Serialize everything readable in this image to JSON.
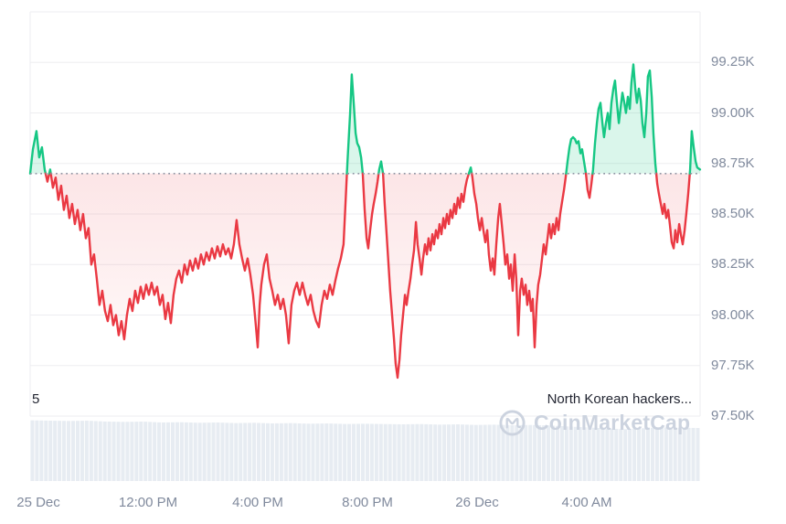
{
  "annotations": {
    "news_count": "5",
    "news_headline": "North Korean hackers..."
  },
  "watermark": {
    "brand": "CoinMarketCap"
  },
  "colors": {
    "up": "#16c784",
    "down": "#ea3943",
    "up_fill": "rgba(22,199,132,0.16)",
    "down_fill_top": "rgba(234,57,67,0.13)",
    "down_fill_bottom": "rgba(234,57,67,0.0)",
    "grid": "#ededf0",
    "baseline_dots": "#8f95a3",
    "axis_text": "#808a9d",
    "news_text": "#222531",
    "volume": "#e7ecf2",
    "watermark": "#ccd3df",
    "background": "#ffffff"
  },
  "chart_data": {
    "type": "line",
    "open_price_k": 98.7,
    "y_axis": {
      "unit": "K",
      "top_value": 99.5,
      "bottom_value": 97.5,
      "ticks": [
        {
          "label": "99.25K",
          "value": 99.25
        },
        {
          "label": "99.00K",
          "value": 99.0
        },
        {
          "label": "98.75K",
          "value": 98.75
        },
        {
          "label": "98.50K",
          "value": 98.5
        },
        {
          "label": "98.25K",
          "value": 98.25
        },
        {
          "label": "98.00K",
          "value": 98.0
        },
        {
          "label": "97.75K",
          "value": 97.75
        },
        {
          "label": "97.50K",
          "value": 97.5
        }
      ]
    },
    "x_axis": {
      "start_hour": 7.7,
      "end_hour": 32.13,
      "ticks": [
        {
          "label": "25 Dec",
          "hour": 8
        },
        {
          "label": "12:00 PM",
          "hour": 12
        },
        {
          "label": "4:00 PM",
          "hour": 16
        },
        {
          "label": "8:00 PM",
          "hour": 20
        },
        {
          "label": "26 Dec",
          "hour": 24
        },
        {
          "label": "4:00 AM",
          "hour": 28
        }
      ]
    },
    "points": [
      [
        7.7,
        98.7
      ],
      [
        7.8,
        98.82
      ],
      [
        7.93,
        98.91
      ],
      [
        8.03,
        98.78
      ],
      [
        8.13,
        98.83
      ],
      [
        8.23,
        98.72
      ],
      [
        8.33,
        98.66
      ],
      [
        8.43,
        98.72
      ],
      [
        8.53,
        98.63
      ],
      [
        8.63,
        98.68
      ],
      [
        8.73,
        98.57
      ],
      [
        8.83,
        98.64
      ],
      [
        8.93,
        98.52
      ],
      [
        9.03,
        98.59
      ],
      [
        9.13,
        98.48
      ],
      [
        9.23,
        98.55
      ],
      [
        9.33,
        98.45
      ],
      [
        9.43,
        98.52
      ],
      [
        9.53,
        98.42
      ],
      [
        9.63,
        98.5
      ],
      [
        9.73,
        98.38
      ],
      [
        9.83,
        98.43
      ],
      [
        9.93,
        98.25
      ],
      [
        10.03,
        98.3
      ],
      [
        10.13,
        98.18
      ],
      [
        10.23,
        98.05
      ],
      [
        10.33,
        98.12
      ],
      [
        10.43,
        98.02
      ],
      [
        10.53,
        97.97
      ],
      [
        10.63,
        98.05
      ],
      [
        10.73,
        97.95
      ],
      [
        10.83,
        98.0
      ],
      [
        10.93,
        97.9
      ],
      [
        11.03,
        97.97
      ],
      [
        11.13,
        97.88
      ],
      [
        11.23,
        98.0
      ],
      [
        11.33,
        98.08
      ],
      [
        11.43,
        98.02
      ],
      [
        11.53,
        98.12
      ],
      [
        11.63,
        98.06
      ],
      [
        11.73,
        98.14
      ],
      [
        11.83,
        98.08
      ],
      [
        11.93,
        98.15
      ],
      [
        12.03,
        98.1
      ],
      [
        12.13,
        98.16
      ],
      [
        12.23,
        98.1
      ],
      [
        12.33,
        98.14
      ],
      [
        12.43,
        98.05
      ],
      [
        12.53,
        98.1
      ],
      [
        12.63,
        97.98
      ],
      [
        12.73,
        98.06
      ],
      [
        12.83,
        97.96
      ],
      [
        12.93,
        98.1
      ],
      [
        13.03,
        98.18
      ],
      [
        13.13,
        98.22
      ],
      [
        13.23,
        98.16
      ],
      [
        13.33,
        98.25
      ],
      [
        13.43,
        98.2
      ],
      [
        13.53,
        98.27
      ],
      [
        13.63,
        98.22
      ],
      [
        13.73,
        98.28
      ],
      [
        13.83,
        98.23
      ],
      [
        13.93,
        98.3
      ],
      [
        14.03,
        98.25
      ],
      [
        14.13,
        98.31
      ],
      [
        14.23,
        98.27
      ],
      [
        14.33,
        98.33
      ],
      [
        14.43,
        98.28
      ],
      [
        14.53,
        98.34
      ],
      [
        14.63,
        98.29
      ],
      [
        14.73,
        98.35
      ],
      [
        14.83,
        98.3
      ],
      [
        14.93,
        98.33
      ],
      [
        15.03,
        98.28
      ],
      [
        15.13,
        98.35
      ],
      [
        15.23,
        98.47
      ],
      [
        15.33,
        98.35
      ],
      [
        15.43,
        98.28
      ],
      [
        15.53,
        98.22
      ],
      [
        15.63,
        98.28
      ],
      [
        15.73,
        98.2
      ],
      [
        15.83,
        98.1
      ],
      [
        15.93,
        97.95
      ],
      [
        16.0,
        97.84
      ],
      [
        16.07,
        98.05
      ],
      [
        16.13,
        98.15
      ],
      [
        16.23,
        98.25
      ],
      [
        16.33,
        98.3
      ],
      [
        16.43,
        98.18
      ],
      [
        16.53,
        98.12
      ],
      [
        16.63,
        98.05
      ],
      [
        16.73,
        98.1
      ],
      [
        16.83,
        98.03
      ],
      [
        16.93,
        98.08
      ],
      [
        17.03,
        98.0
      ],
      [
        17.13,
        97.86
      ],
      [
        17.23,
        98.05
      ],
      [
        17.33,
        98.12
      ],
      [
        17.43,
        98.16
      ],
      [
        17.53,
        98.1
      ],
      [
        17.63,
        98.16
      ],
      [
        17.73,
        98.1
      ],
      [
        17.83,
        98.05
      ],
      [
        17.93,
        98.1
      ],
      [
        18.03,
        98.02
      ],
      [
        18.13,
        97.97
      ],
      [
        18.23,
        97.94
      ],
      [
        18.33,
        98.05
      ],
      [
        18.43,
        98.12
      ],
      [
        18.53,
        98.08
      ],
      [
        18.63,
        98.15
      ],
      [
        18.73,
        98.1
      ],
      [
        18.83,
        98.17
      ],
      [
        18.93,
        98.23
      ],
      [
        19.03,
        98.28
      ],
      [
        19.13,
        98.35
      ],
      [
        19.2,
        98.55
      ],
      [
        19.27,
        98.75
      ],
      [
        19.37,
        99.0
      ],
      [
        19.43,
        99.19
      ],
      [
        19.5,
        99.05
      ],
      [
        19.57,
        98.9
      ],
      [
        19.63,
        98.85
      ],
      [
        19.7,
        98.83
      ],
      [
        19.77,
        98.78
      ],
      [
        19.83,
        98.7
      ],
      [
        19.9,
        98.52
      ],
      [
        19.97,
        98.38
      ],
      [
        20.03,
        98.33
      ],
      [
        20.1,
        98.42
      ],
      [
        20.17,
        98.5
      ],
      [
        20.23,
        98.55
      ],
      [
        20.3,
        98.6
      ],
      [
        20.37,
        98.66
      ],
      [
        20.43,
        98.72
      ],
      [
        20.5,
        98.76
      ],
      [
        20.57,
        98.7
      ],
      [
        20.63,
        98.55
      ],
      [
        20.7,
        98.4
      ],
      [
        20.77,
        98.25
      ],
      [
        20.83,
        98.12
      ],
      [
        20.9,
        98.0
      ],
      [
        20.97,
        97.88
      ],
      [
        21.03,
        97.76
      ],
      [
        21.1,
        97.69
      ],
      [
        21.17,
        97.78
      ],
      [
        21.23,
        97.9
      ],
      [
        21.3,
        98.0
      ],
      [
        21.37,
        98.1
      ],
      [
        21.43,
        98.05
      ],
      [
        21.5,
        98.12
      ],
      [
        21.57,
        98.18
      ],
      [
        21.63,
        98.25
      ],
      [
        21.7,
        98.32
      ],
      [
        21.77,
        98.46
      ],
      [
        21.83,
        98.35
      ],
      [
        21.9,
        98.28
      ],
      [
        21.97,
        98.2
      ],
      [
        22.03,
        98.28
      ],
      [
        22.1,
        98.35
      ],
      [
        22.17,
        98.3
      ],
      [
        22.23,
        98.38
      ],
      [
        22.3,
        98.32
      ],
      [
        22.37,
        98.4
      ],
      [
        22.43,
        98.35
      ],
      [
        22.5,
        98.42
      ],
      [
        22.57,
        98.38
      ],
      [
        22.63,
        98.45
      ],
      [
        22.7,
        98.4
      ],
      [
        22.77,
        98.48
      ],
      [
        22.83,
        98.43
      ],
      [
        22.9,
        98.5
      ],
      [
        22.97,
        98.45
      ],
      [
        23.03,
        98.52
      ],
      [
        23.1,
        98.48
      ],
      [
        23.17,
        98.55
      ],
      [
        23.23,
        98.5
      ],
      [
        23.3,
        98.58
      ],
      [
        23.37,
        98.53
      ],
      [
        23.43,
        98.6
      ],
      [
        23.5,
        98.56
      ],
      [
        23.57,
        98.63
      ],
      [
        23.63,
        98.67
      ],
      [
        23.7,
        98.7
      ],
      [
        23.77,
        98.73
      ],
      [
        23.83,
        98.68
      ],
      [
        23.9,
        98.6
      ],
      [
        23.97,
        98.55
      ],
      [
        24.03,
        98.48
      ],
      [
        24.1,
        98.42
      ],
      [
        24.17,
        98.48
      ],
      [
        24.23,
        98.42
      ],
      [
        24.3,
        98.36
      ],
      [
        24.37,
        98.42
      ],
      [
        24.43,
        98.3
      ],
      [
        24.5,
        98.22
      ],
      [
        24.57,
        98.28
      ],
      [
        24.63,
        98.2
      ],
      [
        24.7,
        98.35
      ],
      [
        24.77,
        98.48
      ],
      [
        24.83,
        98.55
      ],
      [
        24.9,
        98.45
      ],
      [
        24.97,
        98.35
      ],
      [
        25.03,
        98.25
      ],
      [
        25.1,
        98.3
      ],
      [
        25.17,
        98.18
      ],
      [
        25.23,
        98.25
      ],
      [
        25.3,
        98.12
      ],
      [
        25.37,
        98.3
      ],
      [
        25.43,
        98.18
      ],
      [
        25.5,
        97.9
      ],
      [
        25.57,
        98.12
      ],
      [
        25.63,
        98.18
      ],
      [
        25.7,
        98.1
      ],
      [
        25.77,
        98.15
      ],
      [
        25.83,
        98.05
      ],
      [
        25.9,
        98.12
      ],
      [
        25.97,
        98.02
      ],
      [
        26.03,
        98.08
      ],
      [
        26.1,
        97.84
      ],
      [
        26.17,
        98.05
      ],
      [
        26.23,
        98.15
      ],
      [
        26.3,
        98.2
      ],
      [
        26.37,
        98.28
      ],
      [
        26.43,
        98.35
      ],
      [
        26.5,
        98.3
      ],
      [
        26.57,
        98.38
      ],
      [
        26.63,
        98.45
      ],
      [
        26.7,
        98.38
      ],
      [
        26.77,
        98.45
      ],
      [
        26.83,
        98.4
      ],
      [
        26.9,
        98.48
      ],
      [
        26.97,
        98.42
      ],
      [
        27.03,
        98.5
      ],
      [
        27.1,
        98.56
      ],
      [
        27.17,
        98.62
      ],
      [
        27.23,
        98.68
      ],
      [
        27.3,
        98.76
      ],
      [
        27.37,
        98.83
      ],
      [
        27.43,
        98.87
      ],
      [
        27.5,
        98.88
      ],
      [
        27.57,
        98.87
      ],
      [
        27.63,
        98.85
      ],
      [
        27.7,
        98.86
      ],
      [
        27.77,
        98.8
      ],
      [
        27.83,
        98.82
      ],
      [
        27.9,
        98.76
      ],
      [
        27.97,
        98.7
      ],
      [
        28.03,
        98.62
      ],
      [
        28.1,
        98.58
      ],
      [
        28.17,
        98.65
      ],
      [
        28.23,
        98.72
      ],
      [
        28.3,
        98.85
      ],
      [
        28.37,
        98.95
      ],
      [
        28.43,
        99.02
      ],
      [
        28.5,
        99.05
      ],
      [
        28.57,
        98.95
      ],
      [
        28.63,
        98.88
      ],
      [
        28.7,
        98.95
      ],
      [
        28.77,
        99.0
      ],
      [
        28.83,
        98.92
      ],
      [
        28.9,
        99.05
      ],
      [
        28.97,
        99.12
      ],
      [
        29.03,
        99.16
      ],
      [
        29.1,
        99.05
      ],
      [
        29.17,
        98.95
      ],
      [
        29.23,
        99.02
      ],
      [
        29.3,
        99.1
      ],
      [
        29.37,
        99.05
      ],
      [
        29.43,
        99.0
      ],
      [
        29.5,
        99.08
      ],
      [
        29.57,
        99.02
      ],
      [
        29.63,
        99.15
      ],
      [
        29.7,
        99.24
      ],
      [
        29.77,
        99.12
      ],
      [
        29.83,
        99.05
      ],
      [
        29.9,
        99.12
      ],
      [
        29.97,
        99.06
      ],
      [
        30.03,
        98.95
      ],
      [
        30.1,
        98.88
      ],
      [
        30.17,
        99.0
      ],
      [
        30.23,
        99.18
      ],
      [
        30.3,
        99.21
      ],
      [
        30.37,
        99.08
      ],
      [
        30.43,
        98.9
      ],
      [
        30.5,
        98.75
      ],
      [
        30.57,
        98.65
      ],
      [
        30.63,
        98.6
      ],
      [
        30.7,
        98.55
      ],
      [
        30.77,
        98.5
      ],
      [
        30.83,
        98.55
      ],
      [
        30.9,
        98.48
      ],
      [
        30.97,
        98.52
      ],
      [
        31.03,
        98.45
      ],
      [
        31.1,
        98.36
      ],
      [
        31.17,
        98.33
      ],
      [
        31.23,
        98.42
      ],
      [
        31.3,
        98.36
      ],
      [
        31.37,
        98.45
      ],
      [
        31.43,
        98.4
      ],
      [
        31.5,
        98.35
      ],
      [
        31.57,
        98.42
      ],
      [
        31.63,
        98.5
      ],
      [
        31.7,
        98.6
      ],
      [
        31.77,
        98.72
      ],
      [
        31.83,
        98.91
      ],
      [
        31.9,
        98.83
      ],
      [
        31.97,
        98.76
      ],
      [
        32.03,
        98.73
      ],
      [
        32.13,
        98.72
      ]
    ],
    "volume_profile": [
      0.99,
      0.985,
      0.98,
      0.985,
      0.97,
      0.965,
      0.97,
      0.955,
      0.96,
      0.95,
      0.955,
      0.945,
      0.95,
      0.94,
      0.945,
      0.935,
      0.94,
      0.93,
      0.935,
      0.93,
      0.925,
      0.93,
      0.92,
      0.925,
      0.915,
      0.92,
      0.91,
      0.915,
      0.905,
      0.89,
      0.875,
      0.86,
      0.845,
      0.86,
      0.875,
      0.87,
      0.865
    ]
  }
}
